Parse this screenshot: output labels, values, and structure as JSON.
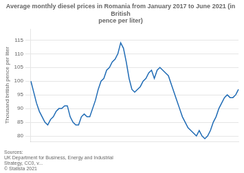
{
  "chart_data": {
    "type": "line",
    "title": "Average monthly diesel prices in Romania from January 2017 to June 2021 (in British\npence per liter)",
    "ylabel": "Thousand british pence per liter",
    "source": "Sources:\nUK Department for Business, Energy and Industrial\nStrategy, CC0, v...\n© Statista 2021",
    "categories": [
      null,
      null,
      null,
      null,
      null,
      null,
      null,
      null,
      null,
      null,
      null,
      null,
      null,
      null,
      null,
      null,
      null,
      null,
      null,
      null,
      null,
      null,
      null,
      null,
      null,
      null,
      null,
      null,
      null,
      null,
      null,
      null,
      null,
      null,
      null,
      null,
      null,
      null,
      null,
      null,
      null,
      null,
      null,
      null,
      null,
      null,
      null,
      null,
      null,
      null,
      null,
      null,
      null,
      null,
      null,
      null,
      null,
      null,
      null,
      null,
      null,
      null,
      null,
      null,
      null,
      null,
      null,
      null,
      null,
      null,
      null,
      null,
      null,
      null,
      null
    ],
    "values": [
      100,
      96,
      92,
      89,
      87,
      85,
      84,
      86,
      87,
      89,
      90,
      90,
      91,
      91,
      87,
      85,
      84,
      84,
      87,
      88,
      87,
      87,
      90,
      93,
      97,
      100,
      101,
      104,
      105,
      107,
      108,
      110,
      114,
      112,
      107,
      101,
      97,
      96,
      97,
      98,
      100,
      101,
      103,
      104,
      101,
      104,
      105,
      104,
      103,
      102,
      99,
      96,
      93,
      90,
      87,
      85,
      83,
      82,
      81,
      80,
      82,
      80,
      79,
      80,
      82,
      85,
      87,
      90,
      92,
      94,
      95,
      94,
      94,
      95,
      97
    ],
    "color": "#1f6bb5",
    "ylim": [
      78,
      119
    ],
    "yticks": [
      80,
      85,
      90,
      95,
      100,
      105,
      110,
      115
    ],
    "grid": true
  }
}
